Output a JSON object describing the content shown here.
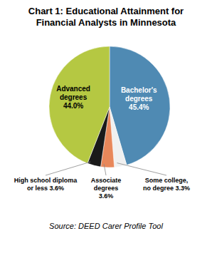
{
  "chart_data": {
    "type": "pie",
    "title": "Chart 1: Educational Attainment for\nFinancial Analysts in Minnesota",
    "categories": [
      "Bachelor's\ndegrees\n45.4%",
      "Some college,\nno degree 3.3%",
      "Associate\ndegrees\n3.6%",
      "High school diploma\nor less 3.6%",
      "Advanced\ndegrees\n44.0%"
    ],
    "values": [
      45.4,
      3.3,
      3.6,
      3.6,
      44.0
    ],
    "colors": [
      "#4f8ab3",
      "#f0f0f0",
      "#e8875a",
      "#1a1a1a",
      "#b5c842"
    ],
    "annotations": [
      "Source: DEED Carer Profile Tool"
    ]
  }
}
